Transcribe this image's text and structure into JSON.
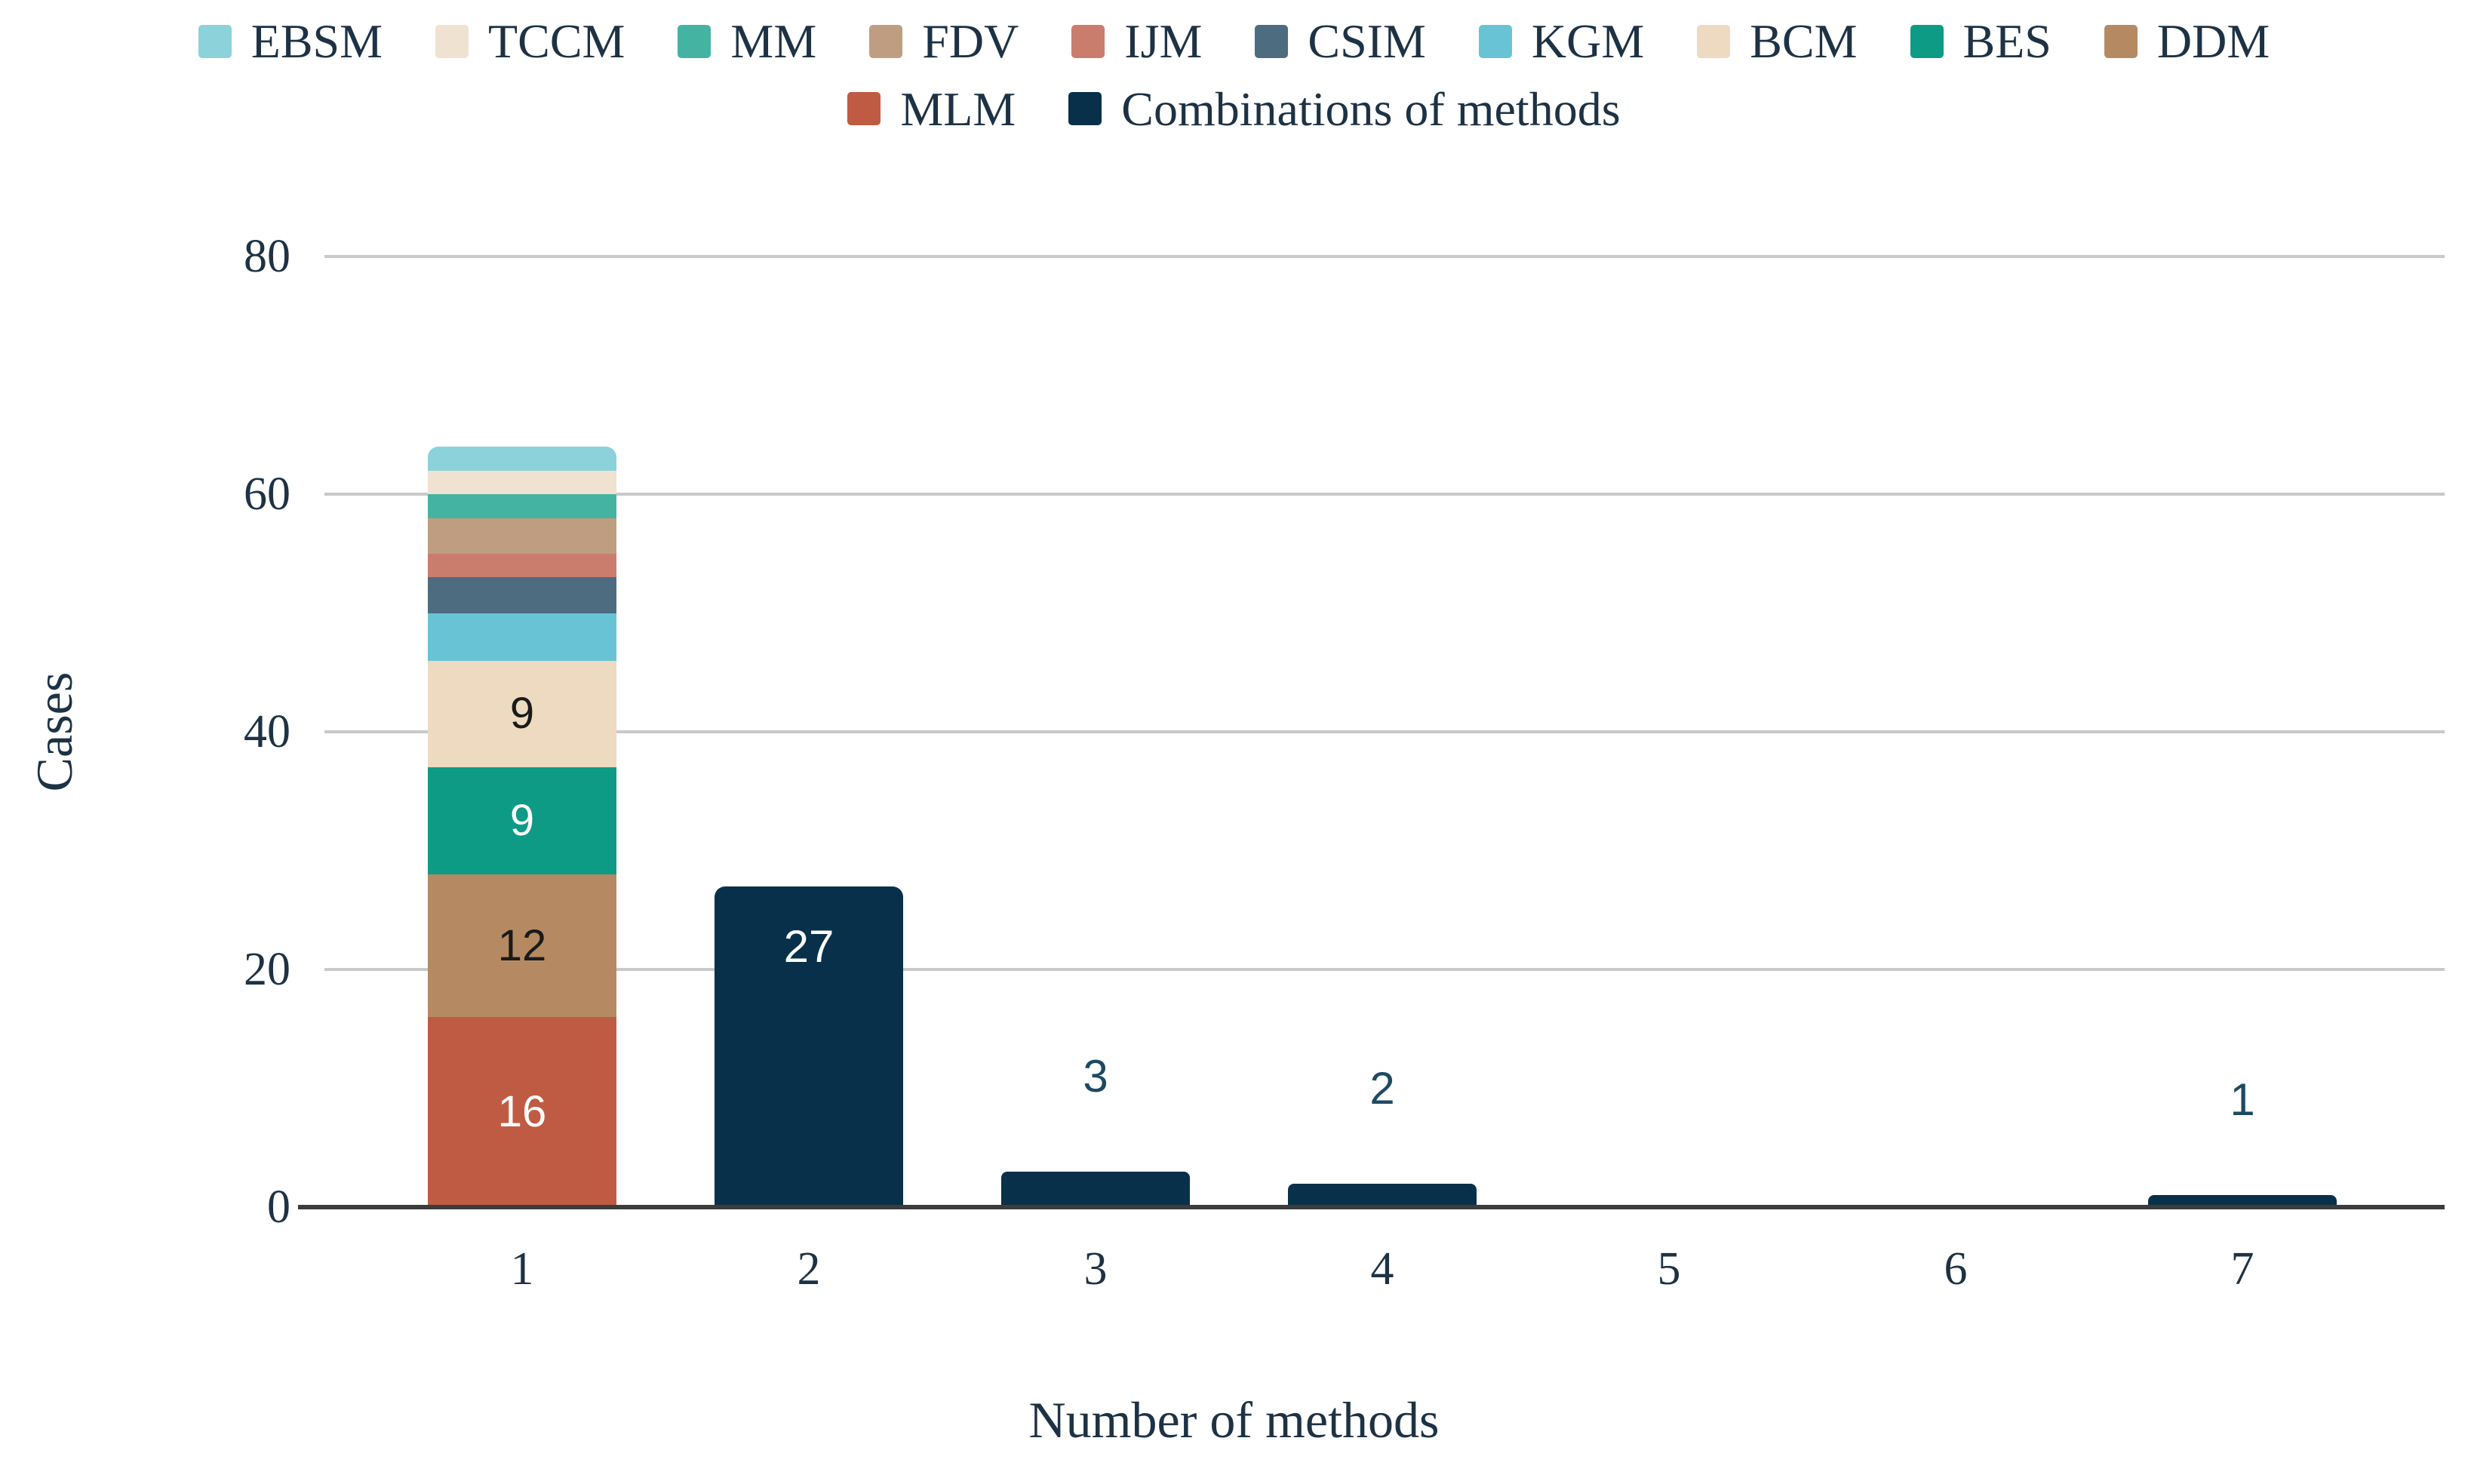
{
  "chart_data": {
    "type": "bar",
    "stacked": true,
    "title": "",
    "xlabel": "Number of methods",
    "ylabel": "Cases",
    "ylim": [
      0,
      80
    ],
    "yticks": [
      0,
      20,
      40,
      60,
      80
    ],
    "categories": [
      1,
      2,
      3,
      4,
      5,
      6,
      7
    ],
    "grid": "horizontal",
    "legend_position": "top-center",
    "legend": {
      "row1": [
        "EBSM",
        "TCCM",
        "MM",
        "FDV",
        "IJM",
        "CSIM",
        "KGM",
        "BCM",
        "BES",
        "DDM"
      ],
      "row2": [
        "MLM",
        "Combinations of methods"
      ]
    },
    "colors": {
      "EBSM": "#8bd2da",
      "TCCM": "#f0e2d1",
      "MM": "#45b3a2",
      "FDV": "#bf9d80",
      "IJM": "#cb7d6d",
      "CSIM": "#4d6c80",
      "KGM": "#68c4d5",
      "BCM": "#eedac0",
      "BES": "#0d9b86",
      "DDM": "#b58a62",
      "MLM": "#c05b43",
      "Combinations of methods": "#08304a"
    },
    "bars": [
      {
        "x": 1,
        "total": 64,
        "segments": [
          {
            "name": "MLM",
            "value": 16,
            "label": "16",
            "label_color": "#ffffff"
          },
          {
            "name": "DDM",
            "value": 12,
            "label": "12",
            "label_color": "#1a1a1a"
          },
          {
            "name": "BES",
            "value": 9,
            "label": "9",
            "label_color": "#ffffff"
          },
          {
            "name": "BCM",
            "value": 9,
            "label": "9",
            "label_color": "#1a1a1a"
          },
          {
            "name": "KGM",
            "value": 4
          },
          {
            "name": "CSIM",
            "value": 3
          },
          {
            "name": "IJM",
            "value": 2
          },
          {
            "name": "FDV",
            "value": 3
          },
          {
            "name": "MM",
            "value": 2
          },
          {
            "name": "TCCM",
            "value": 2
          },
          {
            "name": "EBSM",
            "value": 2
          }
        ]
      },
      {
        "x": 2,
        "name": "Combinations of methods",
        "value": 27,
        "label": "27",
        "label_position": "inside-top",
        "label_color": "#ffffff"
      },
      {
        "x": 3,
        "name": "Combinations of methods",
        "value": 3,
        "label": "3",
        "label_position": "above",
        "label_color": "#1d4a63"
      },
      {
        "x": 4,
        "name": "Combinations of methods",
        "value": 2,
        "label": "2",
        "label_position": "above",
        "label_color": "#1d4a63"
      },
      {
        "x": 5,
        "name": "Combinations of methods",
        "value": 0
      },
      {
        "x": 6,
        "name": "Combinations of methods",
        "value": 0
      },
      {
        "x": 7,
        "name": "Combinations of methods",
        "value": 1,
        "label": "1",
        "label_position": "above",
        "label_color": "#1d4a63"
      }
    ],
    "axis_text_color": "#1d3244",
    "gridline_color": "#c9c9c9",
    "axis_line_color": "#3c3c3c",
    "background_color": "#ffffff"
  }
}
